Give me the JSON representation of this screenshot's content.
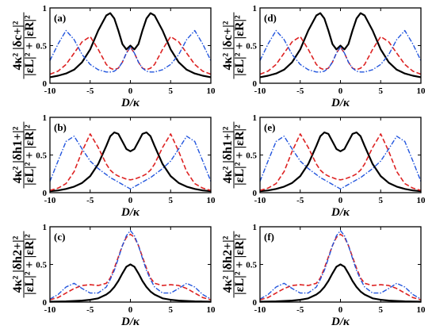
{
  "chart_data": {
    "type": "line",
    "xlim": [
      -10,
      10
    ],
    "ylim": [
      0,
      1
    ],
    "x_ticks": [
      "-10",
      "-5",
      "0",
      "5",
      "10"
    ],
    "y_ticks": [
      "0",
      "0.5",
      "1"
    ],
    "xlabel": "D/κ",
    "row_ylabels": [
      {
        "top": "4κ² |δc+|²",
        "bottom": "|εL|² + |εR|²"
      },
      {
        "top": "4κ² |δh1+|²",
        "bottom": "|εL|² + |εR|²"
      },
      {
        "top": "4κ² |δh2+|²",
        "bottom": "|εL|² + |εR|²"
      }
    ],
    "series_colors": [
      "#000000",
      "#dd2222",
      "#2255dd"
    ],
    "panels": [
      {
        "label": "(a)",
        "x": [
          -10,
          -9,
          -8,
          -7,
          -6,
          -5,
          -4,
          -3,
          -2.5,
          -2,
          -1.5,
          -1,
          -0.5,
          0,
          0.5,
          1,
          1.5,
          2,
          2.5,
          3,
          4,
          5,
          6,
          7,
          8,
          9,
          10
        ],
        "series": [
          {
            "values": [
              0.08,
              0.1,
              0.13,
              0.18,
              0.28,
              0.45,
              0.7,
              0.9,
              0.93,
              0.86,
              0.7,
              0.52,
              0.45,
              0.5,
              0.45,
              0.52,
              0.7,
              0.86,
              0.93,
              0.9,
              0.7,
              0.45,
              0.28,
              0.18,
              0.13,
              0.1,
              0.08
            ]
          },
          {
            "values": [
              0.12,
              0.16,
              0.25,
              0.4,
              0.55,
              0.62,
              0.45,
              0.25,
              0.2,
              0.18,
              0.2,
              0.28,
              0.4,
              0.48,
              0.4,
              0.28,
              0.2,
              0.18,
              0.2,
              0.25,
              0.45,
              0.62,
              0.55,
              0.4,
              0.25,
              0.16,
              0.12
            ]
          },
          {
            "values": [
              0.3,
              0.52,
              0.7,
              0.58,
              0.38,
              0.25,
              0.18,
              0.15,
              0.15,
              0.16,
              0.2,
              0.28,
              0.4,
              0.48,
              0.4,
              0.28,
              0.2,
              0.16,
              0.15,
              0.15,
              0.18,
              0.25,
              0.38,
              0.58,
              0.7,
              0.52,
              0.3
            ]
          }
        ]
      },
      {
        "label": "(d)",
        "x": [
          -10,
          -9,
          -8,
          -7,
          -6,
          -5,
          -4,
          -3,
          -2.5,
          -2,
          -1.5,
          -1,
          -0.5,
          0,
          0.5,
          1,
          1.5,
          2,
          2.5,
          3,
          4,
          5,
          6,
          7,
          8,
          9,
          10
        ],
        "series": [
          {
            "values": [
              0.08,
              0.1,
              0.13,
              0.18,
              0.28,
              0.45,
              0.7,
              0.9,
              0.93,
              0.86,
              0.7,
              0.52,
              0.45,
              0.5,
              0.45,
              0.52,
              0.7,
              0.86,
              0.93,
              0.9,
              0.7,
              0.45,
              0.28,
              0.18,
              0.13,
              0.1,
              0.08
            ]
          },
          {
            "values": [
              0.12,
              0.16,
              0.25,
              0.4,
              0.55,
              0.62,
              0.45,
              0.25,
              0.2,
              0.18,
              0.2,
              0.28,
              0.4,
              0.48,
              0.4,
              0.28,
              0.2,
              0.18,
              0.2,
              0.25,
              0.45,
              0.62,
              0.55,
              0.4,
              0.25,
              0.16,
              0.12
            ]
          },
          {
            "values": [
              0.3,
              0.52,
              0.7,
              0.58,
              0.38,
              0.25,
              0.18,
              0.15,
              0.15,
              0.16,
              0.2,
              0.28,
              0.4,
              0.48,
              0.4,
              0.28,
              0.2,
              0.16,
              0.15,
              0.15,
              0.18,
              0.25,
              0.38,
              0.58,
              0.7,
              0.52,
              0.3
            ]
          }
        ]
      },
      {
        "label": "(b)",
        "x": [
          -10,
          -9,
          -8,
          -7,
          -6,
          -5,
          -4,
          -3,
          -2.5,
          -2,
          -1.5,
          -1,
          -0.5,
          0,
          0.5,
          1,
          1.5,
          2,
          2.5,
          3,
          4,
          5,
          6,
          7,
          8,
          9,
          10
        ],
        "series": [
          {
            "values": [
              0.02,
              0.03,
              0.05,
              0.08,
              0.13,
              0.22,
              0.38,
              0.62,
              0.75,
              0.8,
              0.78,
              0.68,
              0.58,
              0.55,
              0.58,
              0.68,
              0.78,
              0.8,
              0.75,
              0.62,
              0.38,
              0.22,
              0.13,
              0.08,
              0.05,
              0.03,
              0.02
            ]
          },
          {
            "values": [
              0.03,
              0.06,
              0.12,
              0.28,
              0.55,
              0.78,
              0.6,
              0.38,
              0.3,
              0.25,
              0.22,
              0.2,
              0.18,
              0.17,
              0.18,
              0.2,
              0.22,
              0.25,
              0.3,
              0.38,
              0.6,
              0.78,
              0.55,
              0.28,
              0.12,
              0.06,
              0.03
            ]
          },
          {
            "values": [
              0.15,
              0.42,
              0.68,
              0.75,
              0.58,
              0.42,
              0.32,
              0.24,
              0.2,
              0.17,
              0.14,
              0.11,
              0.08,
              0.05,
              0.08,
              0.11,
              0.14,
              0.17,
              0.2,
              0.24,
              0.32,
              0.42,
              0.58,
              0.75,
              0.68,
              0.42,
              0.15
            ]
          }
        ]
      },
      {
        "label": "(e)",
        "x": [
          -10,
          -9,
          -8,
          -7,
          -6,
          -5,
          -4,
          -3,
          -2.5,
          -2,
          -1.5,
          -1,
          -0.5,
          0,
          0.5,
          1,
          1.5,
          2,
          2.5,
          3,
          4,
          5,
          6,
          7,
          8,
          9,
          10
        ],
        "series": [
          {
            "values": [
              0.02,
              0.03,
              0.05,
              0.08,
              0.13,
              0.22,
              0.38,
              0.62,
              0.75,
              0.8,
              0.78,
              0.68,
              0.58,
              0.55,
              0.58,
              0.68,
              0.78,
              0.8,
              0.75,
              0.62,
              0.38,
              0.22,
              0.13,
              0.08,
              0.05,
              0.03,
              0.02
            ]
          },
          {
            "values": [
              0.03,
              0.06,
              0.12,
              0.28,
              0.55,
              0.78,
              0.6,
              0.38,
              0.3,
              0.25,
              0.22,
              0.2,
              0.18,
              0.17,
              0.18,
              0.2,
              0.22,
              0.25,
              0.3,
              0.38,
              0.6,
              0.78,
              0.55,
              0.28,
              0.12,
              0.06,
              0.03
            ]
          },
          {
            "values": [
              0.15,
              0.42,
              0.68,
              0.75,
              0.58,
              0.42,
              0.32,
              0.24,
              0.2,
              0.17,
              0.14,
              0.11,
              0.08,
              0.05,
              0.08,
              0.11,
              0.14,
              0.17,
              0.2,
              0.24,
              0.32,
              0.42,
              0.58,
              0.75,
              0.68,
              0.42,
              0.15
            ]
          }
        ]
      },
      {
        "label": "(c)",
        "x": [
          -10,
          -9,
          -8,
          -7,
          -6,
          -5,
          -4,
          -3,
          -2.5,
          -2,
          -1.5,
          -1,
          -0.5,
          0,
          0.5,
          1,
          1.5,
          2,
          2.5,
          3,
          4,
          5,
          6,
          7,
          8,
          9,
          10
        ],
        "series": [
          {
            "values": [
              0.005,
              0.007,
              0.01,
              0.015,
              0.02,
              0.03,
              0.05,
              0.1,
              0.14,
              0.2,
              0.28,
              0.38,
              0.47,
              0.5,
              0.47,
              0.38,
              0.28,
              0.2,
              0.14,
              0.1,
              0.05,
              0.03,
              0.02,
              0.015,
              0.01,
              0.007,
              0.005
            ]
          },
          {
            "values": [
              0.03,
              0.06,
              0.12,
              0.18,
              0.22,
              0.23,
              0.22,
              0.25,
              0.32,
              0.45,
              0.6,
              0.75,
              0.86,
              0.9,
              0.86,
              0.75,
              0.6,
              0.45,
              0.32,
              0.25,
              0.22,
              0.23,
              0.22,
              0.18,
              0.12,
              0.06,
              0.03
            ]
          },
          {
            "values": [
              0.04,
              0.1,
              0.2,
              0.25,
              0.18,
              0.12,
              0.12,
              0.2,
              0.3,
              0.42,
              0.58,
              0.75,
              0.88,
              0.95,
              0.88,
              0.75,
              0.58,
              0.42,
              0.3,
              0.2,
              0.12,
              0.12,
              0.18,
              0.25,
              0.2,
              0.1,
              0.04
            ]
          }
        ]
      },
      {
        "label": "(f)",
        "x": [
          -10,
          -9,
          -8,
          -7,
          -6,
          -5,
          -4,
          -3,
          -2.5,
          -2,
          -1.5,
          -1,
          -0.5,
          0,
          0.5,
          1,
          1.5,
          2,
          2.5,
          3,
          4,
          5,
          6,
          7,
          8,
          9,
          10
        ],
        "series": [
          {
            "values": [
              0.005,
              0.007,
              0.01,
              0.015,
              0.02,
              0.03,
              0.05,
              0.1,
              0.14,
              0.2,
              0.28,
              0.38,
              0.47,
              0.5,
              0.47,
              0.38,
              0.28,
              0.2,
              0.14,
              0.1,
              0.05,
              0.03,
              0.02,
              0.015,
              0.01,
              0.007,
              0.005
            ]
          },
          {
            "values": [
              0.03,
              0.06,
              0.12,
              0.18,
              0.22,
              0.23,
              0.22,
              0.25,
              0.32,
              0.45,
              0.6,
              0.75,
              0.86,
              0.9,
              0.86,
              0.75,
              0.6,
              0.45,
              0.32,
              0.25,
              0.22,
              0.23,
              0.22,
              0.18,
              0.12,
              0.06,
              0.03
            ]
          },
          {
            "values": [
              0.04,
              0.1,
              0.2,
              0.25,
              0.18,
              0.12,
              0.12,
              0.2,
              0.3,
              0.42,
              0.58,
              0.75,
              0.88,
              0.95,
              0.88,
              0.75,
              0.58,
              0.42,
              0.3,
              0.2,
              0.12,
              0.12,
              0.18,
              0.25,
              0.2,
              0.1,
              0.04
            ]
          }
        ]
      }
    ]
  }
}
